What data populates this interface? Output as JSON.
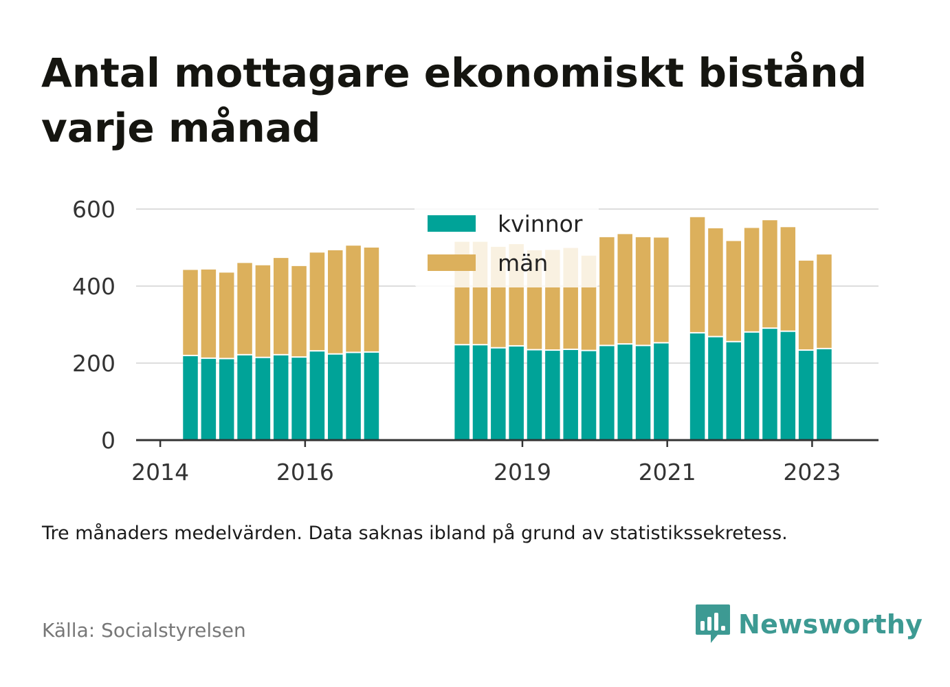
{
  "title": "Antal mottagare ekonomiskt bistånd varje månad",
  "note": "Tre månaders medelvärden. Data saknas ibland på grund av statistikssekretess.",
  "source": "Källa: Socialstyrelsen",
  "brand": {
    "name": "Newsworthy",
    "icon": "newsworthy-logo-icon"
  },
  "colors": {
    "kvinnor": "#00a398",
    "man": "#dcb05c",
    "grid": "#dddddd",
    "axis": "#333333",
    "brand": "#3d9a93"
  },
  "chart_data": {
    "type": "bar",
    "stacked": true,
    "xaxis_type": "date",
    "xlim": [
      "2013-09",
      "2023-12"
    ],
    "ylim": [
      0,
      600
    ],
    "yticks": [
      0,
      200,
      400,
      600
    ],
    "xticks": [
      "2014",
      "2016",
      "2019",
      "2021",
      "2023"
    ],
    "grid": true,
    "legend_position": "top-center",
    "x": [
      "2014-06",
      "2014-09",
      "2014-12",
      "2015-03",
      "2015-06",
      "2015-09",
      "2015-12",
      "2016-03",
      "2016-06",
      "2016-09",
      "2016-12",
      "2018-03",
      "2018-06",
      "2018-09",
      "2018-12",
      "2019-03",
      "2019-06",
      "2019-09",
      "2019-12",
      "2020-03",
      "2020-06",
      "2020-09",
      "2020-12",
      "2021-06",
      "2021-09",
      "2021-12",
      "2022-03",
      "2022-06",
      "2022-09",
      "2022-12",
      "2023-03"
    ],
    "series": [
      {
        "name": "kvinnor",
        "values": [
          218,
          211,
          210,
          220,
          213,
          220,
          214,
          230,
          222,
          226,
          227,
          246,
          246,
          238,
          243,
          233,
          232,
          234,
          231,
          244,
          248,
          244,
          251,
          277,
          267,
          254,
          279,
          289,
          281,
          232,
          236
        ]
      },
      {
        "name": "män",
        "values": [
          224,
          232,
          225,
          240,
          241,
          253,
          238,
          257,
          271,
          279,
          273,
          269,
          269,
          264,
          266,
          260,
          262,
          265,
          248,
          283,
          287,
          283,
          275,
          302,
          283,
          263,
          272,
          282,
          272,
          234,
          246
        ]
      }
    ]
  }
}
